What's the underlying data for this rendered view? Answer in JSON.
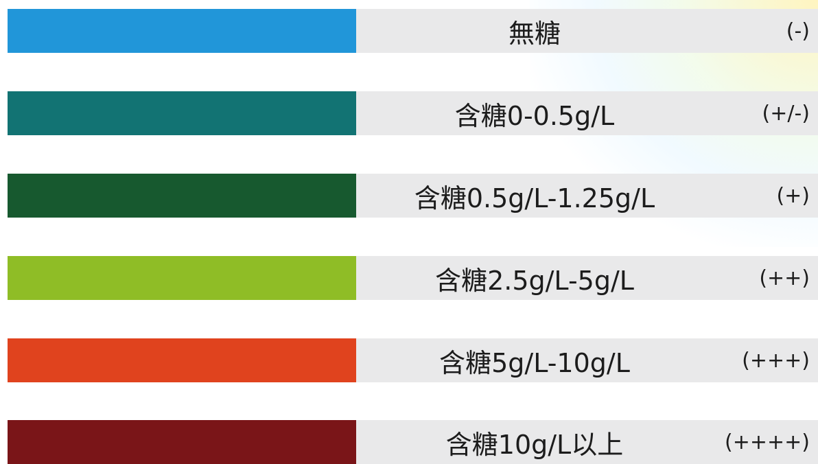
{
  "legend": {
    "items": [
      {
        "color": "#2196d9",
        "label": "無糖",
        "level": "(-)"
      },
      {
        "color": "#127373",
        "label": "含糖0-0.5g/L",
        "level": "(+/-)"
      },
      {
        "color": "#17592f",
        "label": "含糖0.5g/L-1.25g/L",
        "level": "(+)"
      },
      {
        "color": "#8fbd26",
        "label": "含糖2.5g/L-5g/L",
        "level": "(++)"
      },
      {
        "color": "#e0431e",
        "label": "含糖5g/L-10g/L",
        "level": "(+++)"
      },
      {
        "color": "#7a1518",
        "label": "含糖10g/L以上",
        "level": "(++++)"
      }
    ]
  }
}
